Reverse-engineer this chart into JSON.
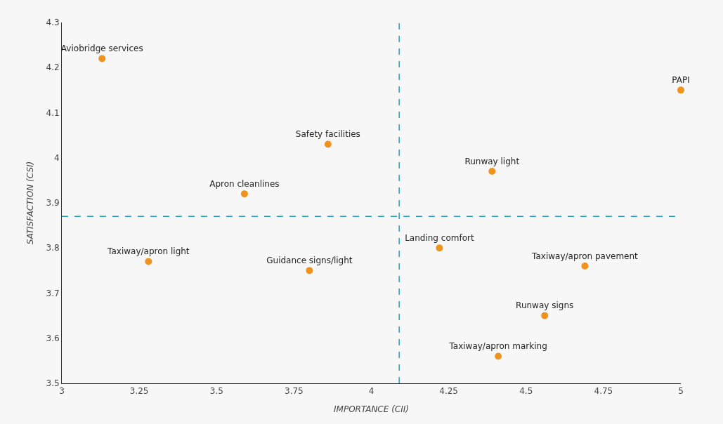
{
  "chart_data": {
    "type": "scatter",
    "xlabel": "IMPORTANCE (CII)",
    "ylabel": "SATISFACTION (CSI)",
    "series": [
      {
        "color": "#f0931e",
        "x": [
          3.13,
          5,
          3.86,
          4.39,
          3.59,
          4.22,
          3.28,
          3.8,
          4.69,
          4.56,
          4.41
        ],
        "values": [
          4.22,
          4.15,
          4.03,
          3.97,
          3.92,
          3.8,
          3.77,
          3.75,
          3.76,
          3.65,
          3.56
        ],
        "value_labels": [
          "Aviobridge services",
          "PAPI",
          "Safety facilities",
          "Runway light",
          "Apron cleanlines",
          "Landing comfort",
          "Taxiway/apron light",
          "Guidance signs/light",
          "Taxiway/apron pavement",
          "Runway signs",
          "Taxiway/apron marking"
        ]
      }
    ],
    "xlim": [
      3,
      5
    ],
    "xticks": [
      3,
      3.25,
      3.5,
      3.75,
      4,
      4.25,
      4.5,
      4.75,
      5
    ],
    "ylim": [
      3.5,
      4.3
    ],
    "yticks": [
      3.5,
      3.6,
      3.7,
      3.8,
      3.9,
      4,
      4.1,
      4.2,
      4.3
    ],
    "ref_lines": [
      {
        "axis": "x",
        "value": 4.09,
        "color": "#2a9db5",
        "line_style": "dashed"
      },
      {
        "axis": "y",
        "value": 3.87,
        "color": "#2a9db5",
        "line_style": "dashed"
      }
    ],
    "marker": "circle",
    "grid": false
  }
}
